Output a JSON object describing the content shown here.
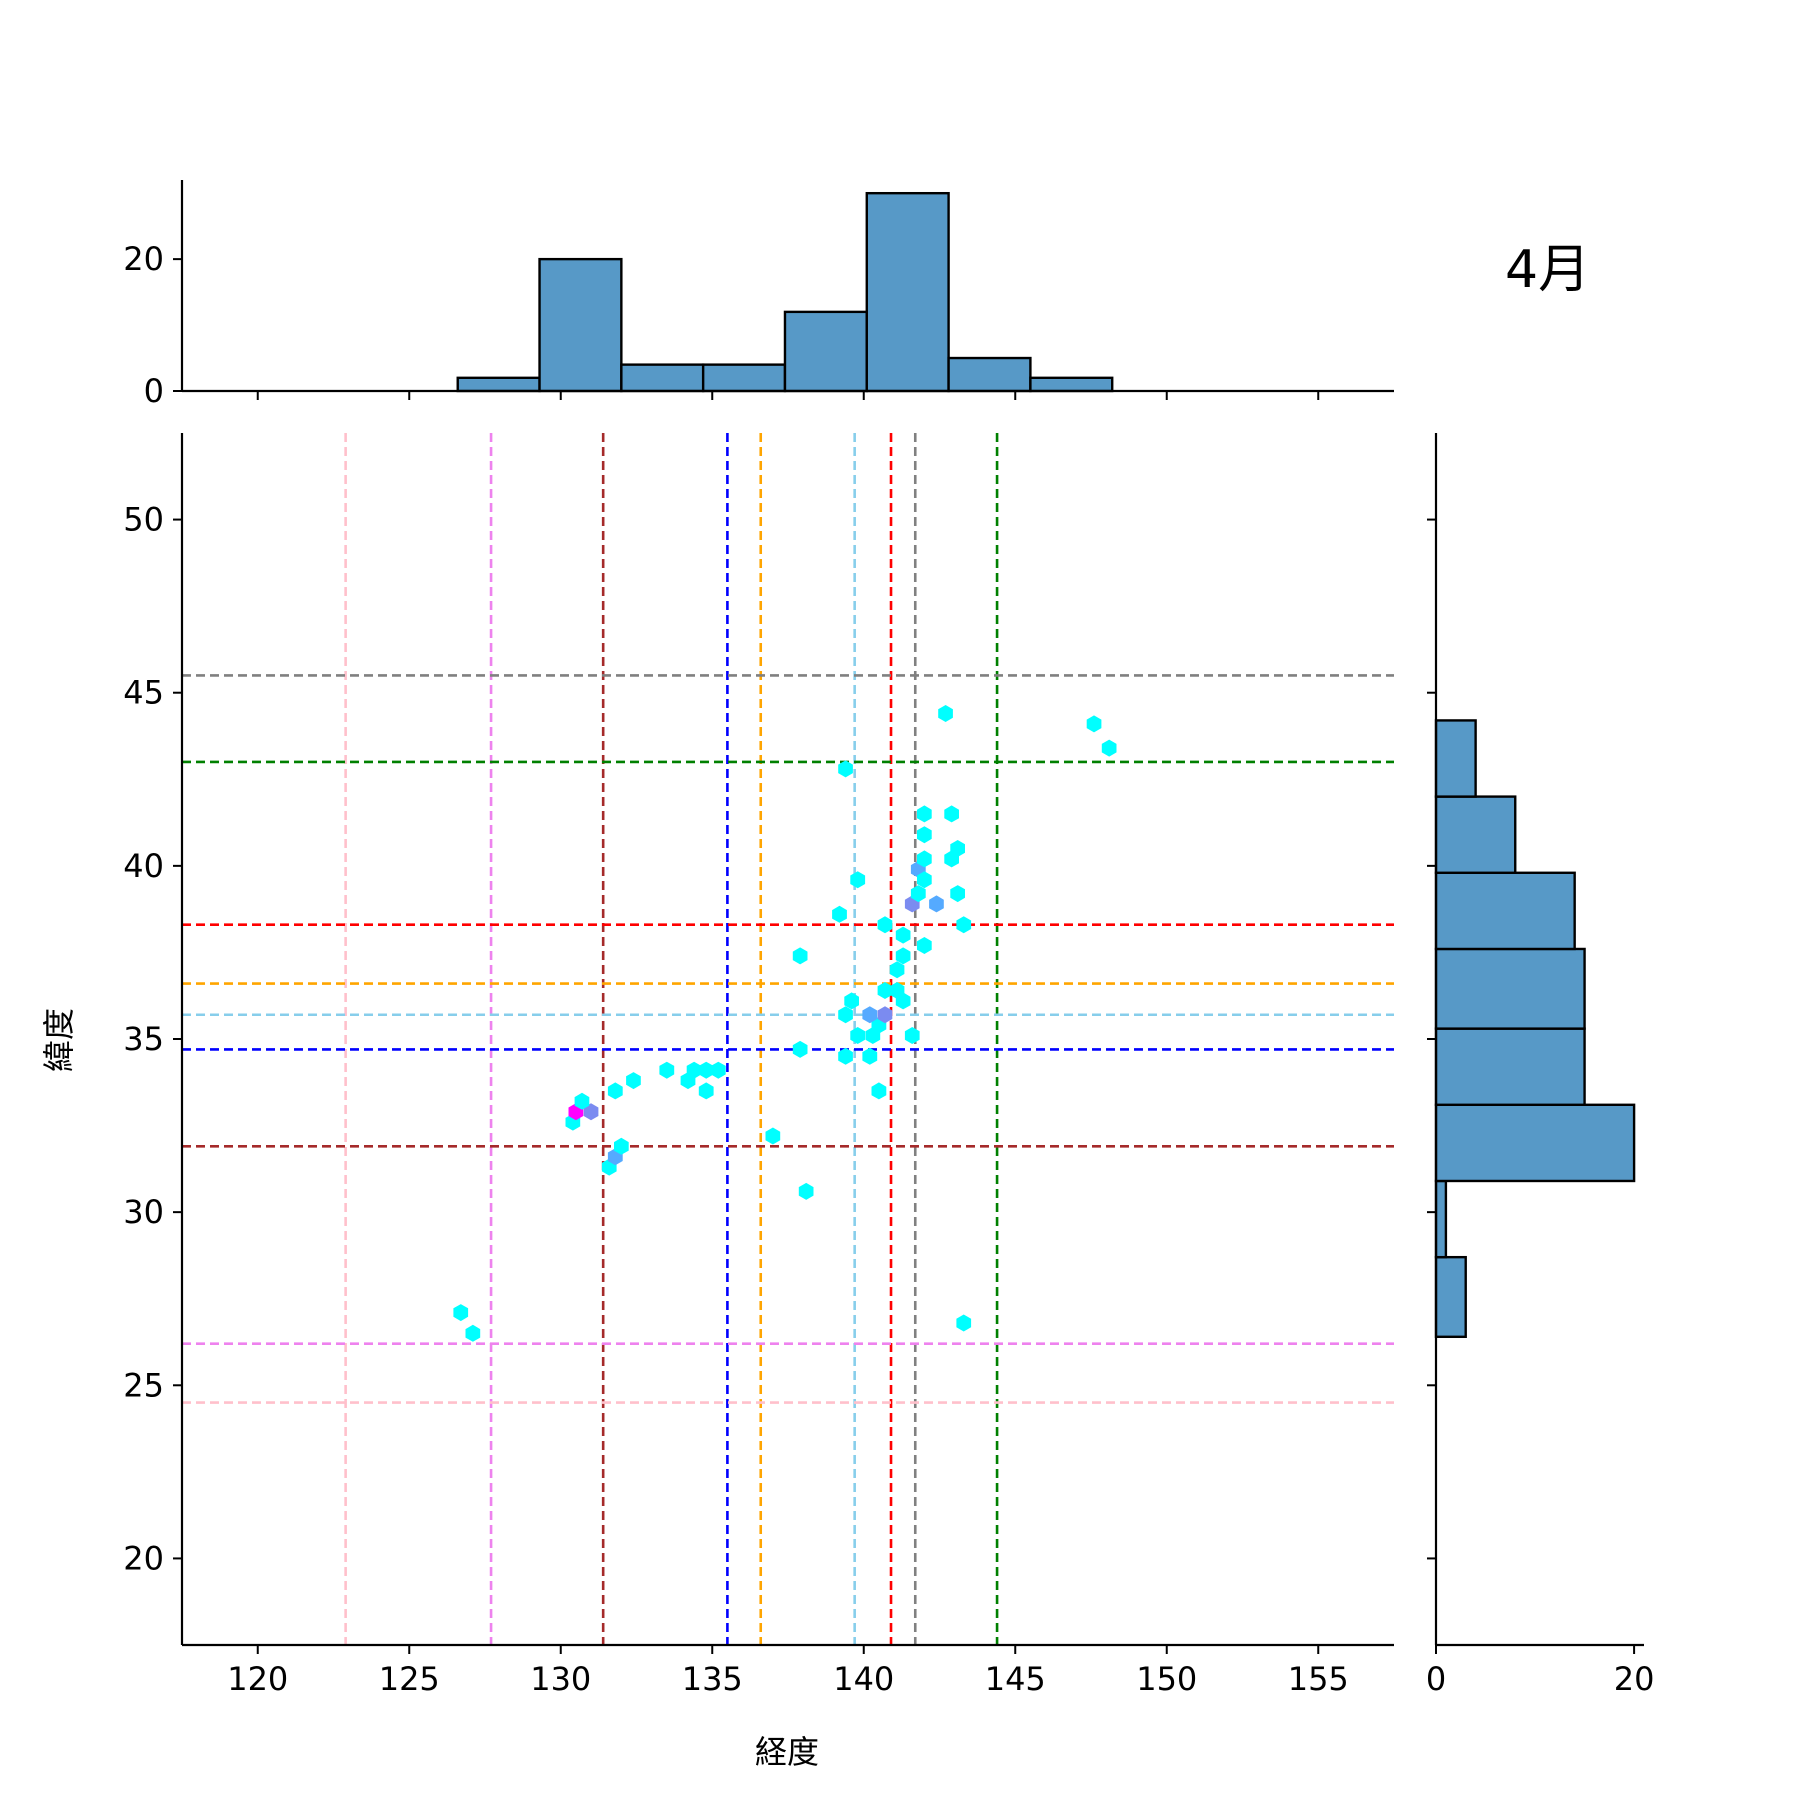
{
  "chart_data": {
    "type": "scatter",
    "label": "4月",
    "xlabel": "経度",
    "ylabel": "緯度",
    "xlim": [
      117.5,
      157.5
    ],
    "ylim": [
      17.5,
      52.5
    ],
    "x_ticks": [
      120,
      125,
      130,
      135,
      140,
      145,
      150,
      155
    ],
    "y_ticks": [
      20,
      25,
      30,
      35,
      40,
      45,
      50
    ],
    "grid": false,
    "legend": "none",
    "points": [
      {
        "x": 126.7,
        "y": 27.1,
        "color": "#00ffff"
      },
      {
        "x": 127.1,
        "y": 26.5,
        "color": "#00ffff"
      },
      {
        "x": 130.4,
        "y": 32.6,
        "color": "#00ffff"
      },
      {
        "x": 130.5,
        "y": 32.9,
        "color": "#ff00ff"
      },
      {
        "x": 131.0,
        "y": 32.9,
        "color": "#7b8bf0"
      },
      {
        "x": 130.7,
        "y": 33.2,
        "color": "#00ffff"
      },
      {
        "x": 131.6,
        "y": 31.3,
        "color": "#00ffff"
      },
      {
        "x": 131.8,
        "y": 31.6,
        "color": "#55aaff"
      },
      {
        "x": 132.0,
        "y": 31.9,
        "color": "#00ffff"
      },
      {
        "x": 131.8,
        "y": 33.5,
        "color": "#00ffff"
      },
      {
        "x": 132.4,
        "y": 33.8,
        "color": "#00ffff"
      },
      {
        "x": 133.5,
        "y": 34.1,
        "color": "#00ffff"
      },
      {
        "x": 134.2,
        "y": 33.8,
        "color": "#00ffff"
      },
      {
        "x": 134.4,
        "y": 34.1,
        "color": "#00ffff"
      },
      {
        "x": 134.8,
        "y": 34.1,
        "color": "#00ffff"
      },
      {
        "x": 135.2,
        "y": 34.1,
        "color": "#00ffff"
      },
      {
        "x": 134.8,
        "y": 33.5,
        "color": "#00ffff"
      },
      {
        "x": 137.0,
        "y": 32.2,
        "color": "#00ffff"
      },
      {
        "x": 138.1,
        "y": 30.6,
        "color": "#00ffff"
      },
      {
        "x": 137.9,
        "y": 34.7,
        "color": "#00ffff"
      },
      {
        "x": 137.9,
        "y": 37.4,
        "color": "#00ffff"
      },
      {
        "x": 139.2,
        "y": 38.6,
        "color": "#00ffff"
      },
      {
        "x": 139.4,
        "y": 42.8,
        "color": "#00ffff"
      },
      {
        "x": 139.8,
        "y": 39.6,
        "color": "#00ffff"
      },
      {
        "x": 139.4,
        "y": 35.7,
        "color": "#00ffff"
      },
      {
        "x": 139.6,
        "y": 36.1,
        "color": "#00ffff"
      },
      {
        "x": 139.8,
        "y": 35.1,
        "color": "#00ffff"
      },
      {
        "x": 139.4,
        "y": 34.5,
        "color": "#00ffff"
      },
      {
        "x": 140.2,
        "y": 34.5,
        "color": "#00ffff"
      },
      {
        "x": 140.5,
        "y": 33.5,
        "color": "#00ffff"
      },
      {
        "x": 140.3,
        "y": 35.1,
        "color": "#00ffff"
      },
      {
        "x": 140.5,
        "y": 35.4,
        "color": "#00ffff"
      },
      {
        "x": 140.2,
        "y": 35.7,
        "color": "#55aaff"
      },
      {
        "x": 140.7,
        "y": 35.7,
        "color": "#7b8bf0"
      },
      {
        "x": 140.7,
        "y": 36.4,
        "color": "#00ffff"
      },
      {
        "x": 141.1,
        "y": 36.4,
        "color": "#00ffff"
      },
      {
        "x": 141.3,
        "y": 36.1,
        "color": "#00ffff"
      },
      {
        "x": 141.6,
        "y": 35.1,
        "color": "#00ffff"
      },
      {
        "x": 140.7,
        "y": 38.3,
        "color": "#00ffff"
      },
      {
        "x": 141.1,
        "y": 37.0,
        "color": "#00ffff"
      },
      {
        "x": 141.3,
        "y": 37.4,
        "color": "#00ffff"
      },
      {
        "x": 141.3,
        "y": 38.0,
        "color": "#00ffff"
      },
      {
        "x": 142.0,
        "y": 37.7,
        "color": "#00ffff"
      },
      {
        "x": 141.6,
        "y": 38.9,
        "color": "#7b8bf0"
      },
      {
        "x": 141.8,
        "y": 39.2,
        "color": "#00ffff"
      },
      {
        "x": 141.8,
        "y": 39.9,
        "color": "#55aaff"
      },
      {
        "x": 142.0,
        "y": 39.6,
        "color": "#00ffff"
      },
      {
        "x": 142.0,
        "y": 40.2,
        "color": "#00ffff"
      },
      {
        "x": 142.0,
        "y": 40.9,
        "color": "#00ffff"
      },
      {
        "x": 142.0,
        "y": 41.5,
        "color": "#00ffff"
      },
      {
        "x": 142.4,
        "y": 38.9,
        "color": "#55aaff"
      },
      {
        "x": 142.9,
        "y": 40.2,
        "color": "#00ffff"
      },
      {
        "x": 143.1,
        "y": 40.5,
        "color": "#00ffff"
      },
      {
        "x": 142.9,
        "y": 41.5,
        "color": "#00ffff"
      },
      {
        "x": 143.1,
        "y": 39.2,
        "color": "#00ffff"
      },
      {
        "x": 143.3,
        "y": 38.3,
        "color": "#00ffff"
      },
      {
        "x": 142.7,
        "y": 44.4,
        "color": "#00ffff"
      },
      {
        "x": 147.6,
        "y": 44.1,
        "color": "#00ffff"
      },
      {
        "x": 148.1,
        "y": 43.4,
        "color": "#00ffff"
      },
      {
        "x": 143.3,
        "y": 26.8,
        "color": "#00ffff"
      }
    ],
    "vlines": [
      {
        "x": 122.9,
        "color": "#ffc0cb"
      },
      {
        "x": 127.7,
        "color": "#ee82ee"
      },
      {
        "x": 131.4,
        "color": "#a52a2a"
      },
      {
        "x": 135.5,
        "color": "#0000ff"
      },
      {
        "x": 136.6,
        "color": "#ffa500"
      },
      {
        "x": 139.7,
        "color": "#87ceeb"
      },
      {
        "x": 140.9,
        "color": "#ff0000"
      },
      {
        "x": 141.7,
        "color": "#808080"
      },
      {
        "x": 144.4,
        "color": "#008000"
      }
    ],
    "hlines": [
      {
        "y": 45.5,
        "color": "#808080"
      },
      {
        "y": 43.0,
        "color": "#008000"
      },
      {
        "y": 38.3,
        "color": "#ff0000"
      },
      {
        "y": 36.6,
        "color": "#ffa500"
      },
      {
        "y": 35.7,
        "color": "#87ceeb"
      },
      {
        "y": 34.7,
        "color": "#0000ff"
      },
      {
        "y": 31.9,
        "color": "#a52a2a"
      },
      {
        "y": 26.2,
        "color": "#ee82ee"
      },
      {
        "y": 24.5,
        "color": "#ffc0cb"
      }
    ],
    "x_histogram": {
      "type": "bar",
      "ylim": [
        0,
        32
      ],
      "y_ticks": [
        0,
        20
      ],
      "bin_edges": [
        126.6,
        129.3,
        132.0,
        134.7,
        137.4,
        140.1,
        142.8,
        145.5,
        148.2
      ],
      "counts": [
        2,
        20,
        4,
        4,
        12,
        30,
        5,
        2
      ],
      "color": "#5799c7"
    },
    "y_histogram": {
      "type": "bar",
      "xlim": [
        0,
        21
      ],
      "x_ticks": [
        0,
        20
      ],
      "bin_edges": [
        26.4,
        28.7,
        30.9,
        33.1,
        35.3,
        37.6,
        39.8,
        42.0,
        44.2
      ],
      "counts": [
        3,
        1,
        20,
        15,
        15,
        14,
        8,
        4
      ],
      "color": "#5799c7"
    }
  }
}
